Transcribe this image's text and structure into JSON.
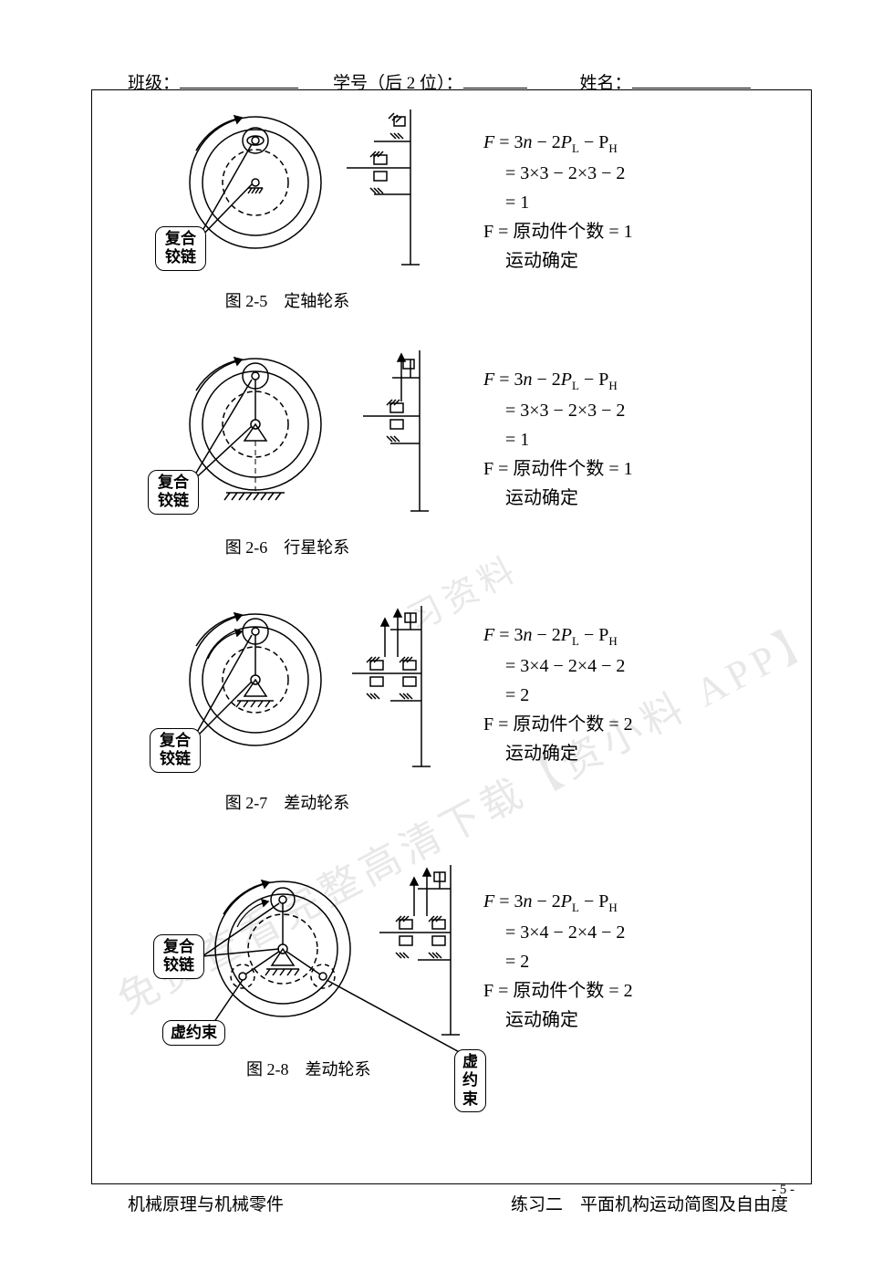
{
  "header": {
    "class_label": "班级：",
    "id_label": "学号（后 2 位）：",
    "name_label": "姓名："
  },
  "figures": [
    {
      "id": "fig25",
      "caption": "图 2-5　定轴轮系",
      "labels": {
        "compound_hinge": "复合\n铰链"
      },
      "formula": {
        "l1": "F = 3n − 2P",
        "l1_sub1": "L",
        "l1_mid": " − P",
        "l1_sub2": "H",
        "l2": "= 3×3 − 2×3 − 2",
        "l3": "= 1",
        "l4_a": "F = ",
        "l4_cn": "原动件个数",
        "l4_b": " = 1",
        "l5": "运动确定"
      }
    },
    {
      "id": "fig26",
      "caption": "图 2-6　行星轮系",
      "labels": {
        "compound_hinge": "复合\n铰链"
      },
      "formula": {
        "l1": "F = 3n − 2P",
        "l1_sub1": "L",
        "l1_mid": " − P",
        "l1_sub2": "H",
        "l2": "= 3×3 − 2×3 − 2",
        "l3": "= 1",
        "l4_a": "F = ",
        "l4_cn": "原动件个数",
        "l4_b": " = 1",
        "l5": "运动确定"
      }
    },
    {
      "id": "fig27",
      "caption": "图 2-7　差动轮系",
      "labels": {
        "compound_hinge": "复合\n铰链"
      },
      "formula": {
        "l1": "F = 3n − 2P",
        "l1_sub1": "L",
        "l1_mid": " − P",
        "l1_sub2": "H",
        "l2": "= 3×4 − 2×4 − 2",
        "l3": "= 2",
        "l4_a": "F = ",
        "l4_cn": "原动件个数",
        "l4_b": " = 2",
        "l5": "运动确定"
      }
    },
    {
      "id": "fig28",
      "caption": "图 2-8　差动轮系",
      "labels": {
        "compound_hinge": "复合\n铰链",
        "virtual1": "虚约束",
        "virtual2": "虚约束"
      },
      "formula": {
        "l1": "F = 3n − 2P",
        "l1_sub1": "L",
        "l1_mid": " − P",
        "l1_sub2": "H",
        "l2": "= 3×4 − 2×4 − 2",
        "l3": "= 2",
        "l4_a": "F = ",
        "l4_cn": "原动件个数",
        "l4_b": " = 2",
        "l5": "运动确定"
      }
    }
  ],
  "footer": {
    "left": "机械原理与机械零件",
    "right": "练习二　平面机构运动简图及自由度"
  },
  "page_number": "- 5 -",
  "watermarks": {
    "wm1": "免费查看完整高清下载【资小料 APP】",
    "wm2": "习资料"
  },
  "style": {
    "stroke": "#000000",
    "dash": "6,4",
    "diagram_bg": "#ffffff"
  }
}
